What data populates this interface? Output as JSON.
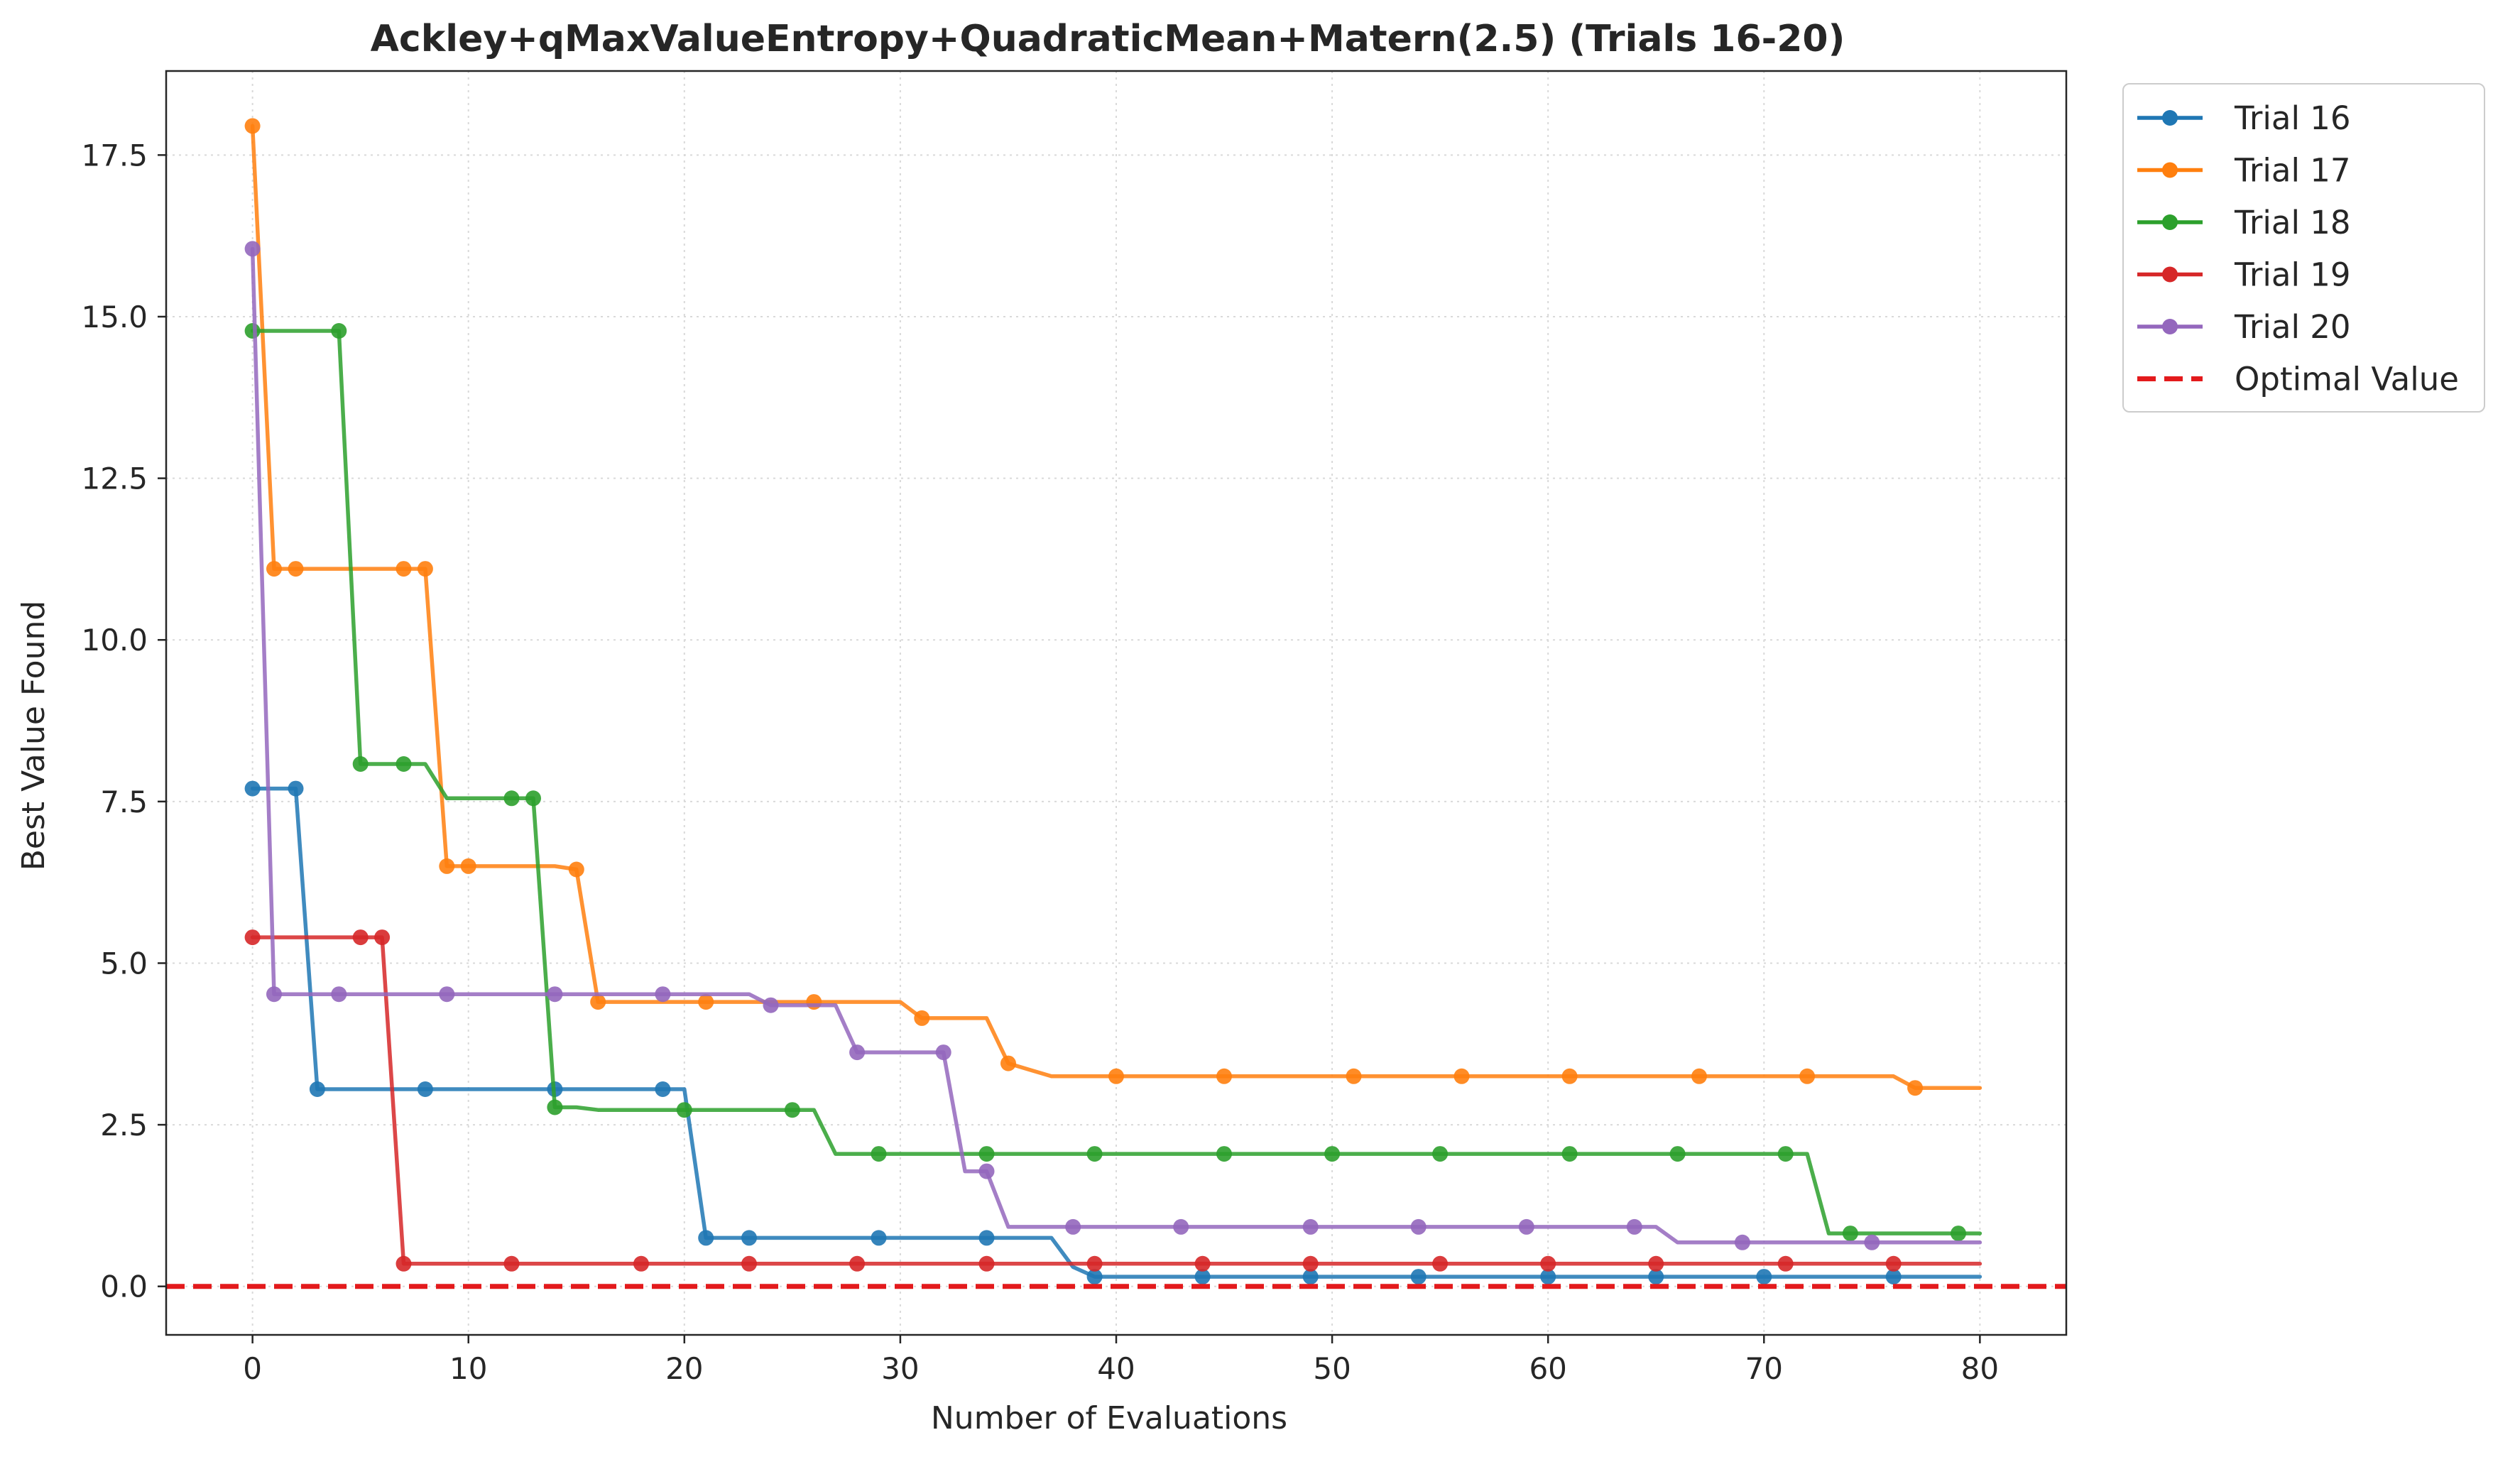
{
  "chart_data": {
    "type": "line",
    "title": "Ackley+qMaxValueEntropy+QuadraticMean+Matern(2.5) (Trials 16-20)",
    "xlabel": "Number of Evaluations",
    "ylabel": "Best Value Found",
    "xlim": [
      -4,
      84
    ],
    "ylim": [
      -0.75,
      18.8
    ],
    "xticks": [
      0,
      10,
      20,
      30,
      40,
      50,
      60,
      70,
      80
    ],
    "xtick_labels": [
      "0",
      "10",
      "20",
      "30",
      "40",
      "50",
      "60",
      "70",
      "80"
    ],
    "yticks": [
      0,
      2.5,
      5,
      7.5,
      10,
      12.5,
      15,
      17.5
    ],
    "ytick_labels": [
      "0.0",
      "2.5",
      "5.0",
      "7.5",
      "10.0",
      "12.5",
      "15.0",
      "17.5"
    ],
    "grid": true,
    "legend_position": "outside-top-right",
    "optimal_value": 0,
    "optimal_label": "Optimal Value",
    "optimal_color": "#e31a1c",
    "series": [
      {
        "name": "Trial 16",
        "color": "#1f77b4",
        "line": [
          [
            0,
            7.7
          ],
          [
            2,
            7.7
          ],
          [
            3,
            3.05
          ],
          [
            20,
            3.05
          ],
          [
            21,
            0.75
          ],
          [
            37,
            0.75
          ],
          [
            38,
            0.3
          ],
          [
            39,
            0.15
          ],
          [
            80,
            0.15
          ]
        ],
        "markers": [
          [
            0,
            7.7
          ],
          [
            2,
            7.7
          ],
          [
            3,
            3.05
          ],
          [
            8,
            3.05
          ],
          [
            14,
            3.05
          ],
          [
            19,
            3.05
          ],
          [
            21,
            0.75
          ],
          [
            23,
            0.75
          ],
          [
            29,
            0.75
          ],
          [
            34,
            0.75
          ],
          [
            39,
            0.15
          ],
          [
            44,
            0.15
          ],
          [
            49,
            0.15
          ],
          [
            54,
            0.15
          ],
          [
            60,
            0.15
          ],
          [
            65,
            0.15
          ],
          [
            70,
            0.15
          ],
          [
            76,
            0.15
          ]
        ]
      },
      {
        "name": "Trial 17",
        "color": "#ff7f0e",
        "line": [
          [
            0,
            17.95
          ],
          [
            1,
            11.1
          ],
          [
            8,
            11.1
          ],
          [
            9,
            6.5
          ],
          [
            14,
            6.5
          ],
          [
            15,
            6.45
          ],
          [
            16,
            4.4
          ],
          [
            30,
            4.4
          ],
          [
            31,
            4.15
          ],
          [
            34,
            4.15
          ],
          [
            35,
            3.45
          ],
          [
            36,
            3.35
          ],
          [
            37,
            3.25
          ],
          [
            75,
            3.25
          ],
          [
            76,
            3.25
          ],
          [
            77,
            3.07
          ],
          [
            80,
            3.07
          ]
        ],
        "markers": [
          [
            0,
            17.95
          ],
          [
            1,
            11.1
          ],
          [
            2,
            11.1
          ],
          [
            7,
            11.1
          ],
          [
            8,
            11.1
          ],
          [
            9,
            6.5
          ],
          [
            10,
            6.5
          ],
          [
            15,
            6.45
          ],
          [
            16,
            4.4
          ],
          [
            21,
            4.4
          ],
          [
            26,
            4.4
          ],
          [
            31,
            4.15
          ],
          [
            35,
            3.45
          ],
          [
            40,
            3.25
          ],
          [
            45,
            3.25
          ],
          [
            51,
            3.25
          ],
          [
            56,
            3.25
          ],
          [
            61,
            3.25
          ],
          [
            67,
            3.25
          ],
          [
            72,
            3.25
          ],
          [
            77,
            3.07
          ]
        ]
      },
      {
        "name": "Trial 18",
        "color": "#2ca02c",
        "line": [
          [
            0,
            14.78
          ],
          [
            4,
            14.78
          ],
          [
            5,
            8.08
          ],
          [
            8,
            8.08
          ],
          [
            9,
            7.55
          ],
          [
            13,
            7.55
          ],
          [
            14,
            2.77
          ],
          [
            15,
            2.77
          ],
          [
            16,
            2.73
          ],
          [
            26,
            2.73
          ],
          [
            27,
            2.05
          ],
          [
            72,
            2.05
          ],
          [
            73,
            0.82
          ],
          [
            80,
            0.82
          ]
        ],
        "markers": [
          [
            0,
            14.78
          ],
          [
            4,
            14.78
          ],
          [
            5,
            8.08
          ],
          [
            7,
            8.08
          ],
          [
            12,
            7.55
          ],
          [
            13,
            7.55
          ],
          [
            14,
            2.77
          ],
          [
            20,
            2.73
          ],
          [
            25,
            2.73
          ],
          [
            29,
            2.05
          ],
          [
            34,
            2.05
          ],
          [
            39,
            2.05
          ],
          [
            45,
            2.05
          ],
          [
            50,
            2.05
          ],
          [
            55,
            2.05
          ],
          [
            61,
            2.05
          ],
          [
            66,
            2.05
          ],
          [
            71,
            2.05
          ],
          [
            74,
            0.82
          ],
          [
            79,
            0.82
          ]
        ]
      },
      {
        "name": "Trial 19",
        "color": "#d62728",
        "line": [
          [
            0,
            5.4
          ],
          [
            6,
            5.4
          ],
          [
            7,
            0.35
          ],
          [
            80,
            0.35
          ]
        ],
        "markers": [
          [
            0,
            5.4
          ],
          [
            5,
            5.4
          ],
          [
            6,
            5.4
          ],
          [
            7,
            0.35
          ],
          [
            12,
            0.35
          ],
          [
            18,
            0.35
          ],
          [
            23,
            0.35
          ],
          [
            28,
            0.35
          ],
          [
            34,
            0.35
          ],
          [
            39,
            0.35
          ],
          [
            44,
            0.35
          ],
          [
            49,
            0.35
          ],
          [
            55,
            0.35
          ],
          [
            60,
            0.35
          ],
          [
            65,
            0.35
          ],
          [
            71,
            0.35
          ],
          [
            76,
            0.35
          ]
        ]
      },
      {
        "name": "Trial 20",
        "color": "#9467bd",
        "line": [
          [
            0,
            16.05
          ],
          [
            1,
            4.52
          ],
          [
            23,
            4.52
          ],
          [
            24,
            4.35
          ],
          [
            27,
            4.35
          ],
          [
            28,
            3.62
          ],
          [
            32,
            3.62
          ],
          [
            33,
            1.78
          ],
          [
            34,
            1.78
          ],
          [
            35,
            0.92
          ],
          [
            65,
            0.92
          ],
          [
            66,
            0.68
          ],
          [
            80,
            0.68
          ]
        ],
        "markers": [
          [
            0,
            16.05
          ],
          [
            1,
            4.52
          ],
          [
            4,
            4.52
          ],
          [
            9,
            4.52
          ],
          [
            14,
            4.52
          ],
          [
            19,
            4.52
          ],
          [
            24,
            4.35
          ],
          [
            28,
            3.62
          ],
          [
            32,
            3.62
          ],
          [
            34,
            1.78
          ],
          [
            38,
            0.92
          ],
          [
            43,
            0.92
          ],
          [
            49,
            0.92
          ],
          [
            54,
            0.92
          ],
          [
            59,
            0.92
          ],
          [
            64,
            0.92
          ],
          [
            69,
            0.68
          ],
          [
            75,
            0.68
          ]
        ]
      }
    ]
  }
}
